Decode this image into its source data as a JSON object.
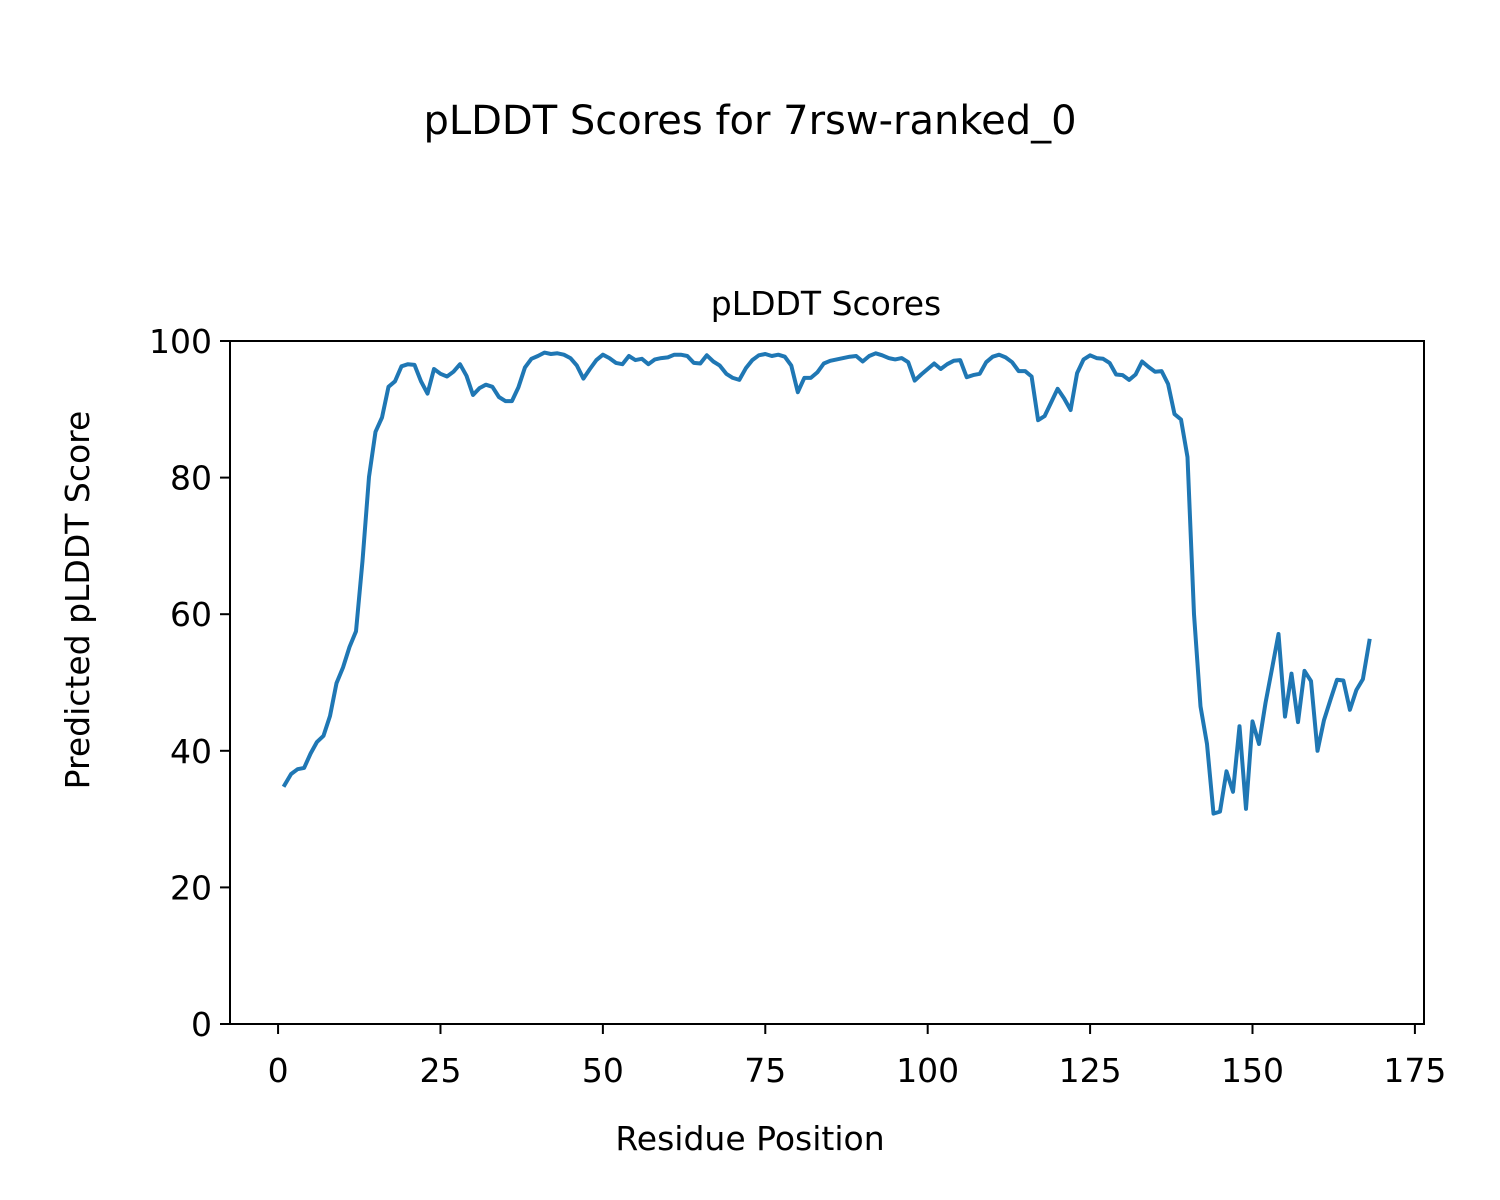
{
  "figure": {
    "suptitle": "pLDDT Scores for 7rsw-ranked_0"
  },
  "chart_data": {
    "type": "line",
    "title": "pLDDT Scores",
    "xlabel": "Residue Position",
    "ylabel": "Predicted pLDDT Score",
    "xlim": [
      -7.4,
      176.4
    ],
    "ylim": [
      0,
      100
    ],
    "xticks": [
      0,
      25,
      50,
      75,
      100,
      125,
      150,
      175
    ],
    "yticks": [
      0,
      20,
      40,
      60,
      80,
      100
    ],
    "grid": false,
    "line_color": "#1f77b4",
    "series": [
      {
        "x": [
          1,
          2,
          3,
          4,
          5,
          6,
          7,
          8,
          9,
          10,
          11,
          12,
          13,
          14,
          15,
          16,
          17,
          18,
          19,
          20,
          21,
          22,
          23,
          24,
          25,
          26,
          27,
          28,
          29,
          30,
          31,
          32,
          33,
          34,
          35,
          36,
          37,
          38,
          39,
          40,
          41,
          42,
          43,
          44,
          45,
          46,
          47,
          48,
          49,
          50,
          51,
          52,
          53,
          54,
          55,
          56,
          57,
          58,
          59,
          60,
          61,
          62,
          63,
          64,
          65,
          66,
          67,
          68,
          69,
          70,
          71,
          72,
          73,
          74,
          75,
          76,
          77,
          78,
          79,
          80,
          81,
          82,
          83,
          84,
          85,
          86,
          87,
          88,
          89,
          90,
          91,
          92,
          93,
          94,
          95,
          96,
          97,
          98,
          99,
          100,
          101,
          102,
          103,
          104,
          105,
          106,
          107,
          108,
          109,
          110,
          111,
          112,
          113,
          114,
          115,
          116,
          117,
          118,
          119,
          120,
          121,
          122,
          123,
          124,
          125,
          126,
          127,
          128,
          129,
          130,
          131,
          132,
          133,
          134,
          135,
          136,
          137,
          138,
          139,
          140,
          141,
          142,
          143,
          144,
          145,
          146,
          147,
          148,
          149,
          150,
          151,
          152,
          153,
          154,
          155,
          156,
          157,
          158,
          159,
          160,
          161,
          162,
          163,
          164,
          165,
          166,
          167,
          168
        ],
        "values": [
          35.0,
          36.6,
          37.3,
          37.5,
          39.6,
          41.3,
          42.2,
          45.1,
          49.9,
          52.2,
          55.2,
          57.5,
          67.8,
          80.1,
          86.7,
          88.8,
          93.3,
          94.1,
          96.3,
          96.6,
          96.5,
          94.1,
          92.3,
          95.9,
          95.2,
          94.8,
          95.5,
          96.6,
          94.9,
          92.1,
          93.1,
          93.6,
          93.3,
          91.8,
          91.2,
          91.2,
          93.2,
          96.1,
          97.4,
          97.8,
          98.3,
          98.1,
          98.2,
          98.0,
          97.5,
          96.4,
          94.5,
          95.9,
          97.2,
          98.0,
          97.5,
          96.8,
          96.6,
          97.8,
          97.2,
          97.4,
          96.6,
          97.3,
          97.5,
          97.6,
          98.0,
          98.0,
          97.8,
          96.8,
          96.7,
          97.9,
          97.0,
          96.4,
          95.2,
          94.6,
          94.3,
          96.0,
          97.2,
          97.9,
          98.1,
          97.8,
          98.0,
          97.7,
          96.4,
          92.5,
          94.6,
          94.6,
          95.4,
          96.7,
          97.1,
          97.3,
          97.5,
          97.7,
          97.8,
          97.0,
          97.8,
          98.2,
          97.9,
          97.5,
          97.3,
          97.5,
          96.9,
          94.2,
          95.1,
          95.9,
          96.7,
          95.9,
          96.6,
          97.1,
          97.2,
          94.7,
          95.0,
          95.2,
          96.9,
          97.7,
          98.0,
          97.6,
          96.9,
          95.6,
          95.6,
          94.8,
          88.4,
          89.0,
          91.0,
          93.0,
          91.6,
          89.9,
          95.3,
          97.3,
          97.9,
          97.5,
          97.4,
          96.8,
          95.1,
          95.0,
          94.3,
          95.1,
          97.0,
          96.2,
          95.5,
          95.6,
          93.7,
          89.3,
          88.5,
          83.0,
          60.0,
          46.5,
          41.0,
          30.8,
          31.1,
          37.0,
          34.0,
          43.6,
          31.5,
          44.3,
          41.0,
          47.0,
          52.0,
          57.1,
          45.0,
          51.3,
          44.2,
          51.7,
          50.2,
          40.0,
          44.5,
          47.5,
          50.4,
          50.3,
          46.0,
          48.9,
          50.5,
          56.1
        ]
      }
    ]
  }
}
